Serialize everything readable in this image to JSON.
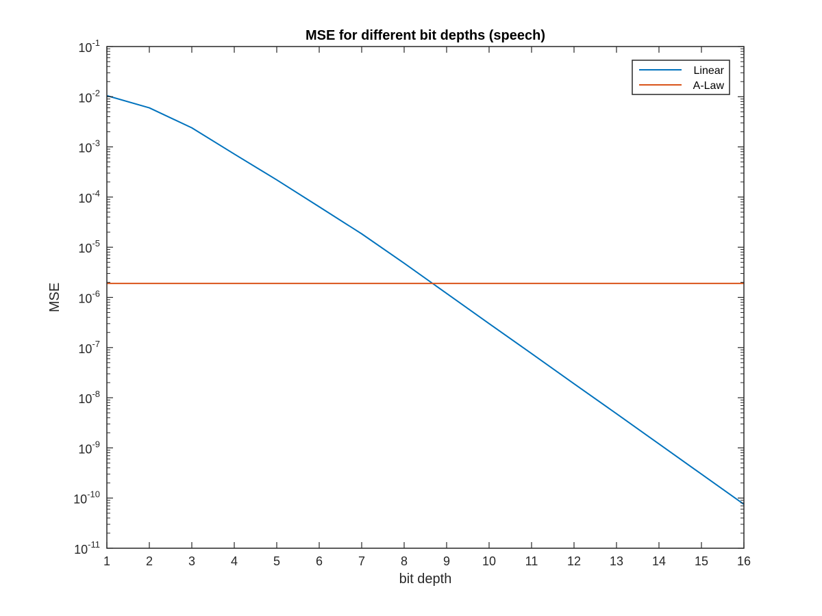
{
  "chart_data": {
    "type": "line",
    "title": "MSE for different bit depths (speech)",
    "xlabel": "bit depth",
    "ylabel": "MSE",
    "xlim": [
      1,
      16
    ],
    "ylim": [
      1e-11,
      0.1
    ],
    "yscale": "log",
    "grid": false,
    "box": true,
    "legend_position": "top-right",
    "x_ticks": [
      "1",
      "2",
      "3",
      "4",
      "5",
      "6",
      "7",
      "8",
      "9",
      "10",
      "11",
      "12",
      "13",
      "14",
      "15",
      "16"
    ],
    "y_ticks": [
      {
        "base": "10",
        "exp": "-1"
      },
      {
        "base": "10",
        "exp": "-2"
      },
      {
        "base": "10",
        "exp": "-3"
      },
      {
        "base": "10",
        "exp": "-4"
      },
      {
        "base": "10",
        "exp": "-5"
      },
      {
        "base": "10",
        "exp": "-6"
      },
      {
        "base": "10",
        "exp": "-7"
      },
      {
        "base": "10",
        "exp": "-8"
      },
      {
        "base": "10",
        "exp": "-9"
      },
      {
        "base": "10",
        "exp": "-10"
      },
      {
        "base": "10",
        "exp": "-11"
      }
    ],
    "series": [
      {
        "name": "Linear",
        "color": "#0072BD",
        "x": [
          1,
          2,
          3,
          4,
          5,
          6,
          7,
          8,
          9,
          10,
          11,
          12,
          13,
          14,
          15,
          16
        ],
        "values": [
          0.0105,
          0.006,
          0.0024,
          0.00072,
          0.00022,
          6.4e-05,
          1.85e-05,
          4.8e-06,
          1.2e-06,
          3e-07,
          7.6e-08,
          1.9e-08,
          4.8e-09,
          1.2e-09,
          3e-10,
          7.5e-11
        ]
      },
      {
        "name": "A-Law",
        "color": "#D95319",
        "x": [
          1,
          16
        ],
        "values": [
          1.9e-06,
          1.9e-06
        ]
      }
    ]
  }
}
